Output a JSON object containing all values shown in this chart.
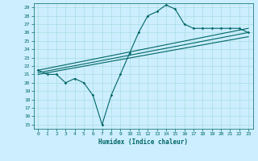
{
  "xlabel": "Humidex (Indice chaleur)",
  "bg_color": "#cceeff",
  "grid_color": "#aadddd",
  "line_color": "#006666",
  "xlim": [
    -0.5,
    23.5
  ],
  "ylim": [
    14.5,
    29.5
  ],
  "yticks": [
    15,
    16,
    17,
    18,
    19,
    20,
    21,
    22,
    23,
    24,
    25,
    26,
    27,
    28,
    29
  ],
  "xticks": [
    0,
    1,
    2,
    3,
    4,
    5,
    6,
    7,
    8,
    9,
    10,
    11,
    12,
    13,
    14,
    15,
    16,
    17,
    18,
    19,
    20,
    21,
    22,
    23
  ],
  "curve1_x": [
    0,
    1,
    2,
    3,
    4,
    5,
    6,
    7,
    8,
    9,
    10,
    11,
    12,
    13,
    14,
    15,
    16,
    17,
    18,
    19,
    20,
    21,
    22,
    23
  ],
  "curve1_y": [
    21.5,
    21.0,
    21.0,
    20.0,
    20.5,
    20.0,
    18.5,
    15.0,
    18.5,
    21.0,
    23.5,
    26.0,
    28.0,
    28.5,
    29.3,
    28.8,
    27.0,
    26.5,
    26.5,
    26.5,
    26.5,
    26.5,
    26.5,
    26.0
  ],
  "line1_x": [
    0,
    23
  ],
  "line1_y": [
    21.5,
    26.5
  ],
  "line2_x": [
    0,
    23
  ],
  "line2_y": [
    21.0,
    25.5
  ],
  "line3_x": [
    0,
    23
  ],
  "line3_y": [
    21.2,
    26.0
  ]
}
